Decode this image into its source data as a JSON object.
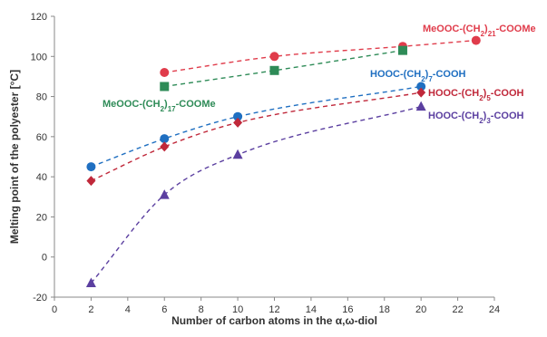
{
  "chart_data": {
    "type": "scatter",
    "title": "",
    "xlabel": "Number of carbon atoms in the α,ω-diol",
    "ylabel": "Melting point of the polyester [°C]",
    "xlim": [
      0,
      24
    ],
    "ylim": [
      -20,
      120
    ],
    "xticks": [
      0,
      2,
      4,
      6,
      8,
      10,
      12,
      14,
      16,
      18,
      20,
      22,
      24
    ],
    "yticks": [
      -20,
      0,
      20,
      40,
      60,
      80,
      100,
      120
    ],
    "grid": false,
    "legend": "inline labels",
    "series": [
      {
        "name": "MeOOC-(CH2)21-COOMe",
        "label": {
          "pre": "MeOOC-(CH",
          "sub1": "2",
          "mid": ")",
          "sub2": "21",
          "post": "-COOMe"
        },
        "marker": "circle",
        "color": "#e03c4b",
        "trend": "dashed",
        "points": [
          [
            6,
            92
          ],
          [
            12,
            100
          ],
          [
            19,
            105
          ],
          [
            23,
            108
          ]
        ]
      },
      {
        "name": "MeOOC-(CH2)17-COOMe",
        "label": {
          "pre": "MeOOC-(CH",
          "sub1": "2",
          "mid": ")",
          "sub2": "17",
          "post": "-COOMe"
        },
        "marker": "square",
        "color": "#2e8b57",
        "trend": "dashed",
        "points": [
          [
            6,
            85
          ],
          [
            12,
            93
          ],
          [
            19,
            103
          ]
        ]
      },
      {
        "name": "HOOC-(CH2)7-COOH",
        "label": {
          "pre": "HOOC-(CH",
          "sub1": "2",
          "mid": ")",
          "sub2": "7",
          "post": "-COOH"
        },
        "marker": "circle",
        "color": "#1f6fc1",
        "trend": "dashed",
        "points": [
          [
            2,
            45
          ],
          [
            6,
            59
          ],
          [
            10,
            70
          ],
          [
            20,
            85
          ]
        ]
      },
      {
        "name": "HOOC-(CH2)5-COOH",
        "label": {
          "pre": "HOOC-(CH",
          "sub1": "2",
          "mid": ")",
          "sub2": "5",
          "post": "-COOH"
        },
        "marker": "diamond",
        "color": "#c0283a",
        "trend": "dashed",
        "points": [
          [
            2,
            38
          ],
          [
            6,
            55
          ],
          [
            10,
            67
          ],
          [
            20,
            82
          ]
        ]
      },
      {
        "name": "HOOC-(CH2)3-COOH",
        "label": {
          "pre": "HOOC-(CH",
          "sub1": "2",
          "mid": ")",
          "sub2": "3",
          "post": "-COOH"
        },
        "marker": "triangle",
        "color": "#5b3fa0",
        "trend": "dashed",
        "points": [
          [
            2,
            -13
          ],
          [
            6,
            31
          ],
          [
            10,
            51
          ],
          [
            20,
            75
          ]
        ]
      }
    ]
  }
}
